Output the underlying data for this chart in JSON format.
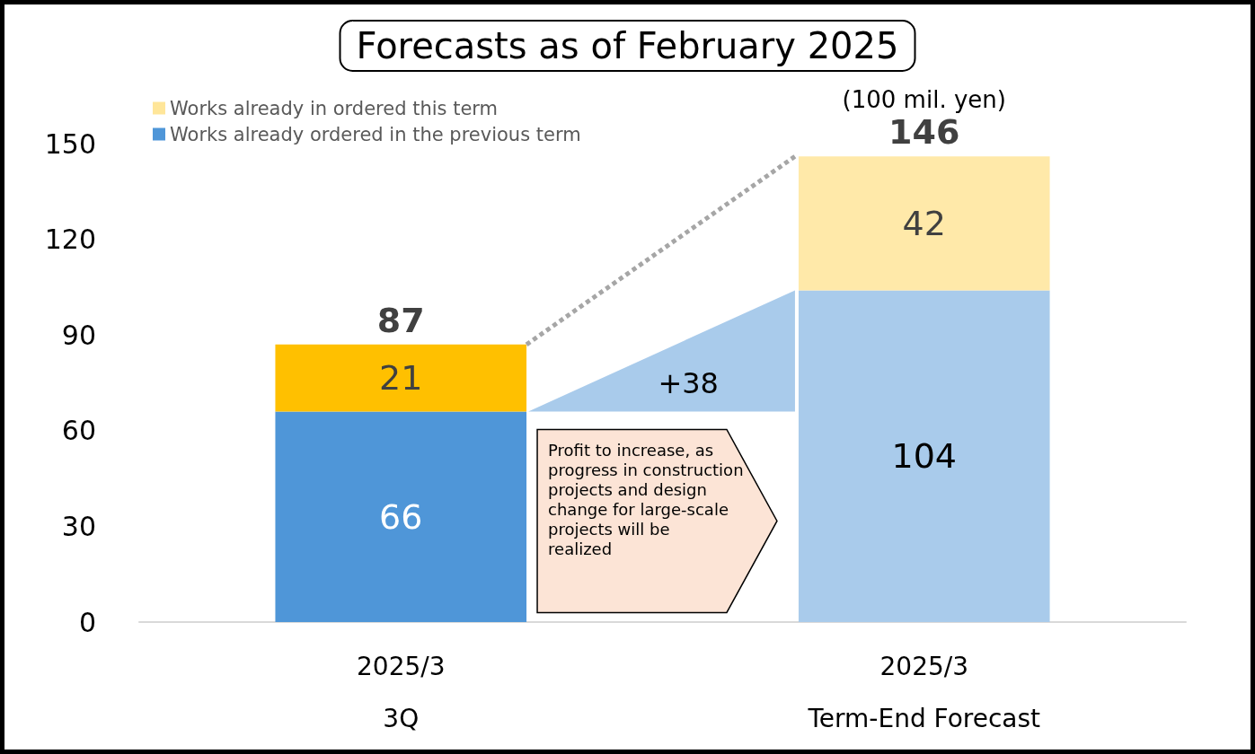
{
  "chart_data": {
    "type": "bar",
    "title": "Forecasts as of February 2025",
    "ylabel": "(100 mil. yen)",
    "categories": [
      "2025/3\n3Q",
      "2025/3\nTerm-End Forecast"
    ],
    "stacked": true,
    "series": [
      {
        "name": "Works already ordered in the previous term",
        "color": "#4f96d8",
        "colors": [
          "#4f96d8",
          "#a9cbeb"
        ],
        "values": [
          66,
          104
        ]
      },
      {
        "name": "Works already in ordered this term",
        "color": "#ffe699",
        "colors": [
          "#ffc000",
          "#ffe9a9"
        ],
        "values": [
          21,
          42
        ]
      }
    ],
    "totals": [
      "87",
      "146"
    ],
    "data_labels": true,
    "ylim": [
      0,
      150
    ],
    "yticks": [
      0,
      30,
      60,
      90,
      120,
      150
    ],
    "grid": false,
    "legend": "top left",
    "annotations": [
      "+38",
      "Profit to increase, as progress in construction projects and design change for large-scale projects will be realized"
    ]
  }
}
